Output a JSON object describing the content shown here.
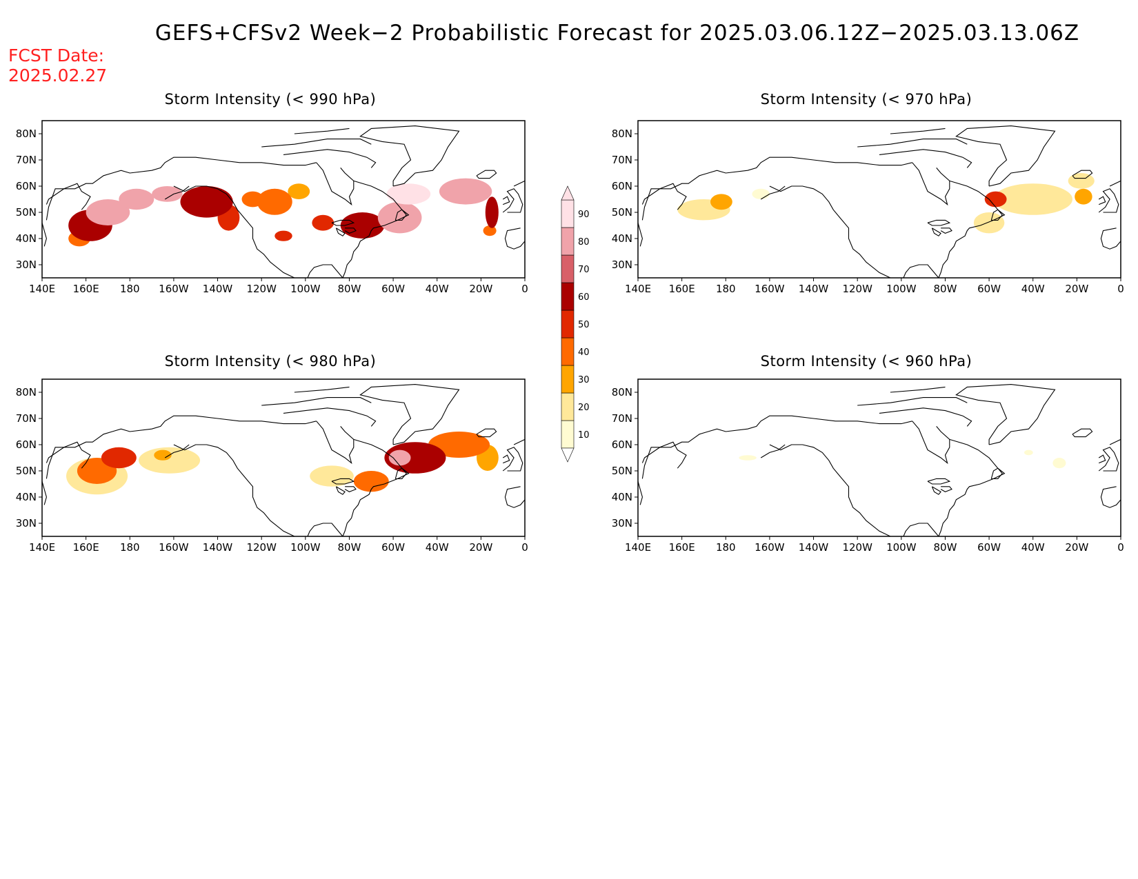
{
  "header": {
    "title": "GEFS+CFSv2 Week−2 Probabilistic Forecast for 2025.03.06.12Z−2025.03.13.06Z",
    "fcst_label": "FCST Date:",
    "fcst_date": "2025.02.27"
  },
  "axes": {
    "lon_ticks": [
      140,
      160,
      180,
      200,
      220,
      240,
      260,
      280,
      300,
      320,
      340,
      360
    ],
    "lon_labels": [
      "140E",
      "160E",
      "180",
      "160W",
      "140W",
      "120W",
      "100W",
      "80W",
      "60W",
      "40W",
      "20W",
      "0"
    ],
    "lat_ticks": [
      80,
      70,
      60,
      50,
      40,
      30
    ],
    "lat_labels": [
      "80N",
      "70N",
      "60N",
      "50N",
      "40N",
      "30N"
    ],
    "lon_range": [
      140,
      360
    ],
    "lat_range": [
      25,
      85
    ]
  },
  "colorbar": {
    "levels": [
      10,
      20,
      30,
      40,
      50,
      60,
      70,
      80,
      90
    ],
    "colors": [
      "#fffbd2",
      "#ffe89a",
      "#ffa500",
      "#ff6a00",
      "#e12800",
      "#aa0000",
      "#d86068",
      "#f0a3aa",
      "#ffe1e6"
    ]
  },
  "panels": [
    {
      "title": "Storm Intensity (< 990 hPa)",
      "blobs": [
        {
          "lon": 162,
          "lat": 45,
          "rlon": 10,
          "rlat": 6,
          "level": 60
        },
        {
          "lon": 170,
          "lat": 50,
          "rlon": 10,
          "rlat": 5,
          "level": 80
        },
        {
          "lon": 183,
          "lat": 55,
          "rlon": 8,
          "rlat": 4,
          "level": 80
        },
        {
          "lon": 157,
          "lat": 40,
          "rlon": 5,
          "rlat": 3,
          "level": 40
        },
        {
          "lon": 197,
          "lat": 57,
          "rlon": 7,
          "rlat": 3,
          "level": 80
        },
        {
          "lon": 215,
          "lat": 54,
          "rlon": 12,
          "rlat": 6,
          "level": 60
        },
        {
          "lon": 225,
          "lat": 48,
          "rlon": 5,
          "rlat": 5,
          "level": 50
        },
        {
          "lon": 236,
          "lat": 55,
          "rlon": 5,
          "rlat": 3,
          "level": 40
        },
        {
          "lon": 246,
          "lat": 54,
          "rlon": 8,
          "rlat": 5,
          "level": 40
        },
        {
          "lon": 257,
          "lat": 58,
          "rlon": 5,
          "rlat": 3,
          "level": 30
        },
        {
          "lon": 250,
          "lat": 41,
          "rlon": 4,
          "rlat": 2,
          "level": 50
        },
        {
          "lon": 268,
          "lat": 46,
          "rlon": 5,
          "rlat": 3,
          "level": 50
        },
        {
          "lon": 286,
          "lat": 45,
          "rlon": 10,
          "rlat": 5,
          "level": 60
        },
        {
          "lon": 303,
          "lat": 48,
          "rlon": 10,
          "rlat": 6,
          "level": 80
        },
        {
          "lon": 307,
          "lat": 57,
          "rlon": 10,
          "rlat": 4,
          "level": 90
        },
        {
          "lon": 333,
          "lat": 58,
          "rlon": 12,
          "rlat": 5,
          "level": 80
        },
        {
          "lon": 345,
          "lat": 50,
          "rlon": 3,
          "rlat": 6,
          "level": 60
        },
        {
          "lon": 344,
          "lat": 43,
          "rlon": 3,
          "rlat": 2,
          "level": 40
        }
      ]
    },
    {
      "title": "Storm Intensity (< 970 hPa)",
      "blobs": [
        {
          "lon": 170,
          "lat": 51,
          "rlon": 12,
          "rlat": 4,
          "level": 20
        },
        {
          "lon": 178,
          "lat": 54,
          "rlon": 5,
          "rlat": 3,
          "level": 30
        },
        {
          "lon": 196,
          "lat": 57,
          "rlon": 4,
          "rlat": 2,
          "level": 10
        },
        {
          "lon": 303,
          "lat": 55,
          "rlon": 5,
          "rlat": 3,
          "level": 50
        },
        {
          "lon": 320,
          "lat": 55,
          "rlon": 18,
          "rlat": 6,
          "level": 20
        },
        {
          "lon": 300,
          "lat": 46,
          "rlon": 7,
          "rlat": 4,
          "level": 20
        },
        {
          "lon": 342,
          "lat": 62,
          "rlon": 6,
          "rlat": 3,
          "level": 20
        },
        {
          "lon": 343,
          "lat": 56,
          "rlon": 4,
          "rlat": 3,
          "level": 30
        }
      ]
    },
    {
      "title": "Storm Intensity (< 980 hPa)",
      "blobs": [
        {
          "lon": 165,
          "lat": 48,
          "rlon": 14,
          "rlat": 7,
          "level": 20
        },
        {
          "lon": 165,
          "lat": 50,
          "rlon": 9,
          "rlat": 5,
          "level": 40
        },
        {
          "lon": 175,
          "lat": 55,
          "rlon": 8,
          "rlat": 4,
          "level": 50
        },
        {
          "lon": 198,
          "lat": 54,
          "rlon": 14,
          "rlat": 5,
          "level": 20
        },
        {
          "lon": 195,
          "lat": 56,
          "rlon": 4,
          "rlat": 2,
          "level": 30
        },
        {
          "lon": 272,
          "lat": 48,
          "rlon": 10,
          "rlat": 4,
          "level": 20
        },
        {
          "lon": 290,
          "lat": 46,
          "rlon": 8,
          "rlat": 4,
          "level": 40
        },
        {
          "lon": 310,
          "lat": 55,
          "rlon": 14,
          "rlat": 6,
          "level": 60
        },
        {
          "lon": 303,
          "lat": 55,
          "rlon": 5,
          "rlat": 3,
          "level": 80
        },
        {
          "lon": 330,
          "lat": 60,
          "rlon": 14,
          "rlat": 5,
          "level": 40
        },
        {
          "lon": 343,
          "lat": 55,
          "rlon": 5,
          "rlat": 5,
          "level": 30
        }
      ]
    },
    {
      "title": "Storm Intensity (< 960 hPa)",
      "blobs": [
        {
          "lon": 190,
          "lat": 55,
          "rlon": 4,
          "rlat": 1,
          "level": 10
        },
        {
          "lon": 332,
          "lat": 53,
          "rlon": 3,
          "rlat": 2,
          "level": 10
        },
        {
          "lon": 318,
          "lat": 57,
          "rlon": 2,
          "rlat": 1,
          "level": 10
        }
      ]
    }
  ]
}
